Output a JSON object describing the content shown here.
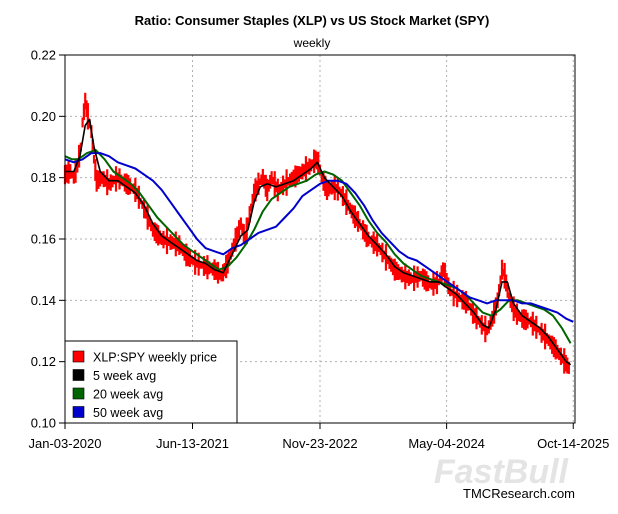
{
  "chart_data": {
    "type": "line",
    "title": "Ratio: Consumer Staples (XLP) vs US Stock Market (SPY)",
    "subtitle": "weekly",
    "xlabel": "",
    "ylabel": "",
    "ylim": [
      0.1,
      0.22
    ],
    "yticks": [
      "0.10",
      "0.12",
      "0.14",
      "0.16",
      "0.18",
      "0.20",
      "0.22"
    ],
    "xlim": [
      2020.0,
      2025.8
    ],
    "xticks": [
      {
        "label": "Jan-03-2020",
        "x": 2020.0
      },
      {
        "label": "Jun-13-2021",
        "x": 2021.45
      },
      {
        "label": "Nov-23-2022",
        "x": 2022.9
      },
      {
        "label": "May-04-2024",
        "x": 2024.34
      },
      {
        "label": "Oct-14-2025",
        "x": 2025.78
      }
    ],
    "grid": true,
    "legend_position": "bottom-left",
    "series": [
      {
        "name": "XLP:SPY weekly price",
        "color": "#ff0000",
        "style": "bars",
        "points": [
          [
            2020.0,
            0.181
          ],
          [
            2020.06,
            0.182
          ],
          [
            2020.1,
            0.18
          ],
          [
            2020.14,
            0.184
          ],
          [
            2020.18,
            0.19
          ],
          [
            2020.2,
            0.198
          ],
          [
            2020.23,
            0.205
          ],
          [
            2020.26,
            0.2
          ],
          [
            2020.3,
            0.195
          ],
          [
            2020.33,
            0.186
          ],
          [
            2020.36,
            0.179
          ],
          [
            2020.42,
            0.18
          ],
          [
            2020.5,
            0.178
          ],
          [
            2020.6,
            0.18
          ],
          [
            2020.7,
            0.178
          ],
          [
            2020.8,
            0.176
          ],
          [
            2020.9,
            0.17
          ],
          [
            2021.0,
            0.163
          ],
          [
            2021.1,
            0.16
          ],
          [
            2021.2,
            0.159
          ],
          [
            2021.3,
            0.158
          ],
          [
            2021.4,
            0.154
          ],
          [
            2021.5,
            0.152
          ],
          [
            2021.6,
            0.151
          ],
          [
            2021.7,
            0.15
          ],
          [
            2021.78,
            0.148
          ],
          [
            2021.85,
            0.152
          ],
          [
            2021.92,
            0.158
          ],
          [
            2022.0,
            0.165
          ],
          [
            2022.05,
            0.16
          ],
          [
            2022.1,
            0.168
          ],
          [
            2022.15,
            0.175
          ],
          [
            2022.2,
            0.178
          ],
          [
            2022.25,
            0.18
          ],
          [
            2022.3,
            0.176
          ],
          [
            2022.35,
            0.18
          ],
          [
            2022.42,
            0.176
          ],
          [
            2022.5,
            0.178
          ],
          [
            2022.6,
            0.18
          ],
          [
            2022.7,
            0.182
          ],
          [
            2022.8,
            0.184
          ],
          [
            2022.85,
            0.186
          ],
          [
            2022.88,
            0.185
          ],
          [
            2022.92,
            0.18
          ],
          [
            2022.98,
            0.176
          ],
          [
            2023.05,
            0.177
          ],
          [
            2023.12,
            0.176
          ],
          [
            2023.2,
            0.172
          ],
          [
            2023.28,
            0.168
          ],
          [
            2023.35,
            0.165
          ],
          [
            2023.45,
            0.16
          ],
          [
            2023.55,
            0.158
          ],
          [
            2023.65,
            0.154
          ],
          [
            2023.75,
            0.15
          ],
          [
            2023.85,
            0.148
          ],
          [
            2023.95,
            0.147
          ],
          [
            2024.05,
            0.148
          ],
          [
            2024.15,
            0.145
          ],
          [
            2024.25,
            0.146
          ],
          [
            2024.3,
            0.15
          ],
          [
            2024.38,
            0.143
          ],
          [
            2024.48,
            0.141
          ],
          [
            2024.58,
            0.139
          ],
          [
            2024.66,
            0.135
          ],
          [
            2024.74,
            0.132
          ],
          [
            2024.8,
            0.13
          ],
          [
            2024.86,
            0.134
          ],
          [
            2024.92,
            0.14
          ],
          [
            2024.97,
            0.15
          ],
          [
            2025.0,
            0.148
          ],
          [
            2025.05,
            0.141
          ],
          [
            2025.12,
            0.136
          ],
          [
            2025.2,
            0.134
          ],
          [
            2025.3,
            0.133
          ],
          [
            2025.4,
            0.13
          ],
          [
            2025.5,
            0.127
          ],
          [
            2025.58,
            0.124
          ],
          [
            2025.66,
            0.121
          ],
          [
            2025.73,
            0.118
          ]
        ]
      },
      {
        "name": "5 week avg",
        "color": "#000000",
        "style": "line",
        "points": [
          [
            2020.0,
            0.182
          ],
          [
            2020.1,
            0.182
          ],
          [
            2020.17,
            0.187
          ],
          [
            2020.23,
            0.197
          ],
          [
            2020.28,
            0.199
          ],
          [
            2020.33,
            0.19
          ],
          [
            2020.4,
            0.182
          ],
          [
            2020.5,
            0.179
          ],
          [
            2020.6,
            0.179
          ],
          [
            2020.7,
            0.177
          ],
          [
            2020.8,
            0.175
          ],
          [
            2020.9,
            0.171
          ],
          [
            2021.0,
            0.165
          ],
          [
            2021.1,
            0.161
          ],
          [
            2021.2,
            0.159
          ],
          [
            2021.3,
            0.157
          ],
          [
            2021.4,
            0.155
          ],
          [
            2021.5,
            0.153
          ],
          [
            2021.6,
            0.152
          ],
          [
            2021.7,
            0.15
          ],
          [
            2021.8,
            0.149
          ],
          [
            2021.9,
            0.155
          ],
          [
            2022.0,
            0.161
          ],
          [
            2022.08,
            0.163
          ],
          [
            2022.15,
            0.172
          ],
          [
            2022.22,
            0.177
          ],
          [
            2022.3,
            0.178
          ],
          [
            2022.4,
            0.177
          ],
          [
            2022.5,
            0.178
          ],
          [
            2022.6,
            0.179
          ],
          [
            2022.7,
            0.181
          ],
          [
            2022.8,
            0.183
          ],
          [
            2022.87,
            0.185
          ],
          [
            2022.95,
            0.18
          ],
          [
            2023.05,
            0.177
          ],
          [
            2023.15,
            0.174
          ],
          [
            2023.25,
            0.169
          ],
          [
            2023.35,
            0.165
          ],
          [
            2023.45,
            0.161
          ],
          [
            2023.55,
            0.158
          ],
          [
            2023.65,
            0.155
          ],
          [
            2023.75,
            0.151
          ],
          [
            2023.85,
            0.149
          ],
          [
            2023.95,
            0.148
          ],
          [
            2024.05,
            0.147
          ],
          [
            2024.15,
            0.146
          ],
          [
            2024.25,
            0.146
          ],
          [
            2024.35,
            0.144
          ],
          [
            2024.45,
            0.142
          ],
          [
            2024.55,
            0.139
          ],
          [
            2024.65,
            0.136
          ],
          [
            2024.75,
            0.132
          ],
          [
            2024.82,
            0.131
          ],
          [
            2024.9,
            0.137
          ],
          [
            2024.97,
            0.146
          ],
          [
            2025.03,
            0.146
          ],
          [
            2025.1,
            0.139
          ],
          [
            2025.2,
            0.135
          ],
          [
            2025.3,
            0.133
          ],
          [
            2025.4,
            0.131
          ],
          [
            2025.5,
            0.128
          ],
          [
            2025.6,
            0.124
          ],
          [
            2025.7,
            0.12
          ],
          [
            2025.75,
            0.119
          ]
        ]
      },
      {
        "name": "20 week avg",
        "color": "#006400",
        "style": "line",
        "points": [
          [
            2020.0,
            0.187
          ],
          [
            2020.08,
            0.186
          ],
          [
            2020.15,
            0.186
          ],
          [
            2020.25,
            0.188
          ],
          [
            2020.35,
            0.189
          ],
          [
            2020.45,
            0.186
          ],
          [
            2020.55,
            0.182
          ],
          [
            2020.65,
            0.18
          ],
          [
            2020.75,
            0.178
          ],
          [
            2020.85,
            0.175
          ],
          [
            2020.95,
            0.171
          ],
          [
            2021.05,
            0.167
          ],
          [
            2021.15,
            0.164
          ],
          [
            2021.25,
            0.161
          ],
          [
            2021.35,
            0.158
          ],
          [
            2021.45,
            0.156
          ],
          [
            2021.55,
            0.154
          ],
          [
            2021.65,
            0.152
          ],
          [
            2021.75,
            0.15
          ],
          [
            2021.85,
            0.151
          ],
          [
            2021.95,
            0.154
          ],
          [
            2022.05,
            0.158
          ],
          [
            2022.15,
            0.163
          ],
          [
            2022.25,
            0.169
          ],
          [
            2022.35,
            0.173
          ],
          [
            2022.45,
            0.175
          ],
          [
            2022.55,
            0.177
          ],
          [
            2022.65,
            0.178
          ],
          [
            2022.75,
            0.179
          ],
          [
            2022.85,
            0.181
          ],
          [
            2022.95,
            0.182
          ],
          [
            2023.05,
            0.181
          ],
          [
            2023.15,
            0.179
          ],
          [
            2023.25,
            0.175
          ],
          [
            2023.35,
            0.171
          ],
          [
            2023.45,
            0.166
          ],
          [
            2023.55,
            0.162
          ],
          [
            2023.65,
            0.159
          ],
          [
            2023.75,
            0.155
          ],
          [
            2023.85,
            0.152
          ],
          [
            2023.95,
            0.15
          ],
          [
            2024.05,
            0.148
          ],
          [
            2024.15,
            0.147
          ],
          [
            2024.25,
            0.146
          ],
          [
            2024.35,
            0.145
          ],
          [
            2024.45,
            0.144
          ],
          [
            2024.55,
            0.142
          ],
          [
            2024.65,
            0.139
          ],
          [
            2024.75,
            0.136
          ],
          [
            2024.85,
            0.135
          ],
          [
            2024.95,
            0.137
          ],
          [
            2025.05,
            0.14
          ],
          [
            2025.15,
            0.14
          ],
          [
            2025.25,
            0.139
          ],
          [
            2025.35,
            0.138
          ],
          [
            2025.45,
            0.137
          ],
          [
            2025.55,
            0.135
          ],
          [
            2025.65,
            0.131
          ],
          [
            2025.75,
            0.126
          ]
        ]
      },
      {
        "name": "50 week avg",
        "color": "#0000cd",
        "style": "line",
        "points": [
          [
            2020.0,
            0.186
          ],
          [
            2020.1,
            0.185
          ],
          [
            2020.2,
            0.186
          ],
          [
            2020.3,
            0.188
          ],
          [
            2020.4,
            0.188
          ],
          [
            2020.5,
            0.187
          ],
          [
            2020.6,
            0.185
          ],
          [
            2020.7,
            0.184
          ],
          [
            2020.8,
            0.183
          ],
          [
            2020.9,
            0.181
          ],
          [
            2021.0,
            0.179
          ],
          [
            2021.1,
            0.176
          ],
          [
            2021.2,
            0.172
          ],
          [
            2021.3,
            0.168
          ],
          [
            2021.4,
            0.164
          ],
          [
            2021.5,
            0.16
          ],
          [
            2021.6,
            0.157
          ],
          [
            2021.7,
            0.156
          ],
          [
            2021.8,
            0.155
          ],
          [
            2021.9,
            0.157
          ],
          [
            2022.0,
            0.158
          ],
          [
            2022.1,
            0.16
          ],
          [
            2022.2,
            0.162
          ],
          [
            2022.3,
            0.163
          ],
          [
            2022.4,
            0.164
          ],
          [
            2022.5,
            0.167
          ],
          [
            2022.6,
            0.17
          ],
          [
            2022.7,
            0.174
          ],
          [
            2022.8,
            0.176
          ],
          [
            2022.9,
            0.178
          ],
          [
            2023.0,
            0.179
          ],
          [
            2023.1,
            0.179
          ],
          [
            2023.2,
            0.178
          ],
          [
            2023.3,
            0.175
          ],
          [
            2023.4,
            0.171
          ],
          [
            2023.5,
            0.166
          ],
          [
            2023.6,
            0.162
          ],
          [
            2023.7,
            0.159
          ],
          [
            2023.8,
            0.156
          ],
          [
            2023.9,
            0.154
          ],
          [
            2024.0,
            0.153
          ],
          [
            2024.1,
            0.151
          ],
          [
            2024.2,
            0.149
          ],
          [
            2024.3,
            0.147
          ],
          [
            2024.4,
            0.145
          ],
          [
            2024.5,
            0.143
          ],
          [
            2024.6,
            0.141
          ],
          [
            2024.7,
            0.14
          ],
          [
            2024.8,
            0.139
          ],
          [
            2024.9,
            0.14
          ],
          [
            2025.0,
            0.14
          ],
          [
            2025.1,
            0.14
          ],
          [
            2025.2,
            0.139
          ],
          [
            2025.3,
            0.139
          ],
          [
            2025.4,
            0.138
          ],
          [
            2025.5,
            0.137
          ],
          [
            2025.6,
            0.136
          ],
          [
            2025.7,
            0.134
          ],
          [
            2025.78,
            0.133
          ]
        ]
      }
    ]
  },
  "watermark": "FastBull",
  "credit": "TMCResearch.com"
}
